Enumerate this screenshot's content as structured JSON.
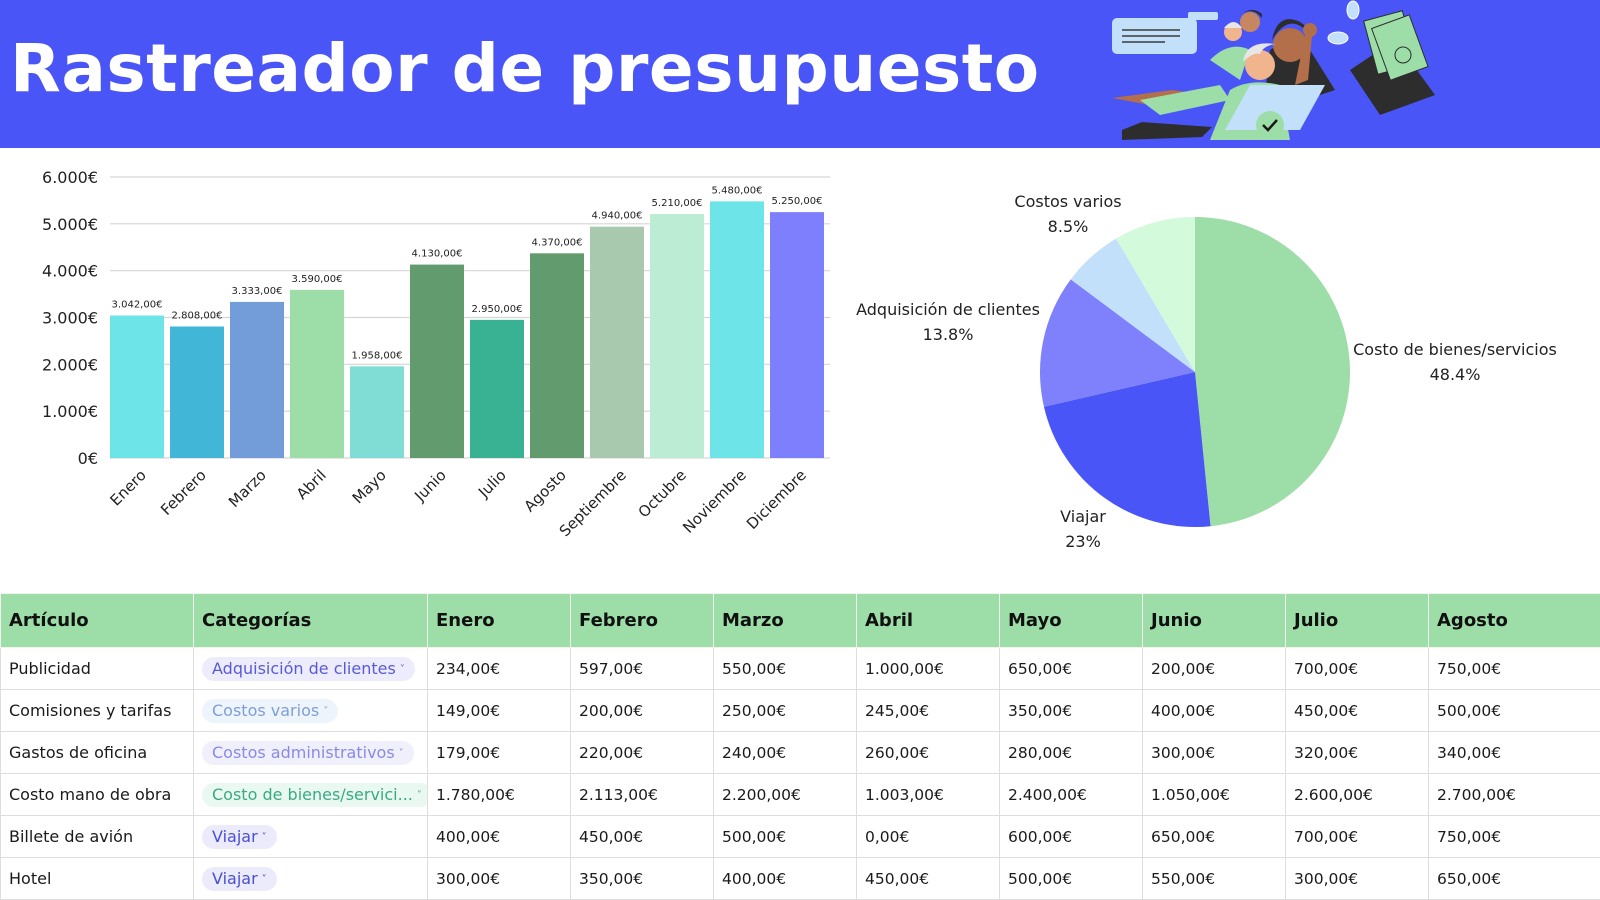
{
  "header": {
    "title": "Rastreador de presupuesto",
    "background_color": "#4a55f7",
    "illustration": "team-with-laptop-and-money-envelope-illustration"
  },
  "chart_data": [
    {
      "type": "bar",
      "title": "",
      "xlabel": "",
      "ylabel": "",
      "categories": [
        "Enero",
        "Febrero",
        "Marzo",
        "Abril",
        "Mayo",
        "Junio",
        "Julio",
        "Agosto",
        "Septiembre",
        "Octubre",
        "Noviembre",
        "Diciembre"
      ],
      "values": [
        3042,
        2808,
        3333,
        3590,
        1958,
        4130,
        2950,
        4370,
        4940,
        5210,
        5480,
        5250
      ],
      "data_labels": [
        "3.042,00€",
        "2.808,00€",
        "3.333,00€",
        "3.590,00€",
        "1.958,00€",
        "4.130,00€",
        "2.950,00€",
        "4.370,00€",
        "4.940,00€",
        "5.210,00€",
        "5.480,00€",
        "5.250,00€"
      ],
      "colors": [
        "#6ce4e8",
        "#42b6d6",
        "#729dd9",
        "#9ddea8",
        "#80ddd6",
        "#619b6e",
        "#39b294",
        "#619b6e",
        "#a9c9ae",
        "#bdecd4",
        "#6ce4e8",
        "#7e7ffc"
      ],
      "ylim": [
        0,
        6000
      ],
      "yticks": [
        "0€",
        "1.000€",
        "2.000€",
        "3.000€",
        "4.000€",
        "5.000€",
        "6.000€"
      ],
      "grid": true,
      "legend": "none"
    },
    {
      "type": "pie",
      "title": "",
      "slices": [
        {
          "label": "Costo de bienes/servicios",
          "value": 48.4,
          "pct_label": "48.4%",
          "color": "#9ddea8"
        },
        {
          "label": "Viajar",
          "value": 23,
          "pct_label": "23%",
          "color": "#4a55f7"
        },
        {
          "label": "Adquisición de clientes",
          "value": 13.8,
          "pct_label": "13.8%",
          "color": "#7e80fc"
        },
        {
          "label": "",
          "value": 6.3,
          "pct_label": "",
          "color": "#c3e0fb"
        },
        {
          "label": "Costos varios",
          "value": 8.5,
          "pct_label": "8.5%",
          "color": "#d4fadc"
        }
      ],
      "legend": "labels-outside"
    }
  ],
  "table": {
    "columns": [
      "Artículo",
      "Categorías",
      "Enero",
      "Febrero",
      "Marzo",
      "Abril",
      "Mayo",
      "Junio",
      "Julio",
      "Agosto"
    ],
    "header_color": "#9ddea8",
    "rows": [
      {
        "item": "Publicidad",
        "category": "Adquisición de clientes",
        "cat_fg": "#5a5ad6",
        "cat_bg": "#ececfc",
        "values": [
          "234,00€",
          "597,00€",
          "550,00€",
          "1.000,00€",
          "650,00€",
          "200,00€",
          "700,00€",
          "750,00€"
        ]
      },
      {
        "item": "Comisiones y tarifas",
        "category": "Costos varios",
        "cat_fg": "#7e9fd6",
        "cat_bg": "#eef4fc",
        "values": [
          "149,00€",
          "200,00€",
          "250,00€",
          "245,00€",
          "350,00€",
          "400,00€",
          "450,00€",
          "500,00€"
        ]
      },
      {
        "item": "Gastos de oficina",
        "category": "Costos administrativos",
        "cat_fg": "#8a8ae6",
        "cat_bg": "#f0f0fd",
        "values": [
          "179,00€",
          "220,00€",
          "240,00€",
          "260,00€",
          "280,00€",
          "300,00€",
          "320,00€",
          "340,00€"
        ]
      },
      {
        "item": "Costo mano de obra",
        "category": "Costo de bienes/servici...",
        "cat_fg": "#3aaa84",
        "cat_bg": "#e9f8f1",
        "values": [
          "1.780,00€",
          "2.113,00€",
          "2.200,00€",
          "1.003,00€",
          "2.400,00€",
          "1.050,00€",
          "2.600,00€",
          "2.700,00€"
        ]
      },
      {
        "item": "Billete de avión",
        "category": "Viajar",
        "cat_fg": "#4a4ed6",
        "cat_bg": "#ebebfc",
        "values": [
          "400,00€",
          "450,00€",
          "500,00€",
          "0,00€",
          "600,00€",
          "650,00€",
          "700,00€",
          "750,00€"
        ]
      },
      {
        "item": "Hotel",
        "category": "Viajar",
        "cat_fg": "#4a4ed6",
        "cat_bg": "#ebebfc",
        "values": [
          "300,00€",
          "350,00€",
          "400,00€",
          "450,00€",
          "500,00€",
          "550,00€",
          "300,00€",
          "650,00€"
        ]
      }
    ],
    "chevron_icon": "˅"
  }
}
